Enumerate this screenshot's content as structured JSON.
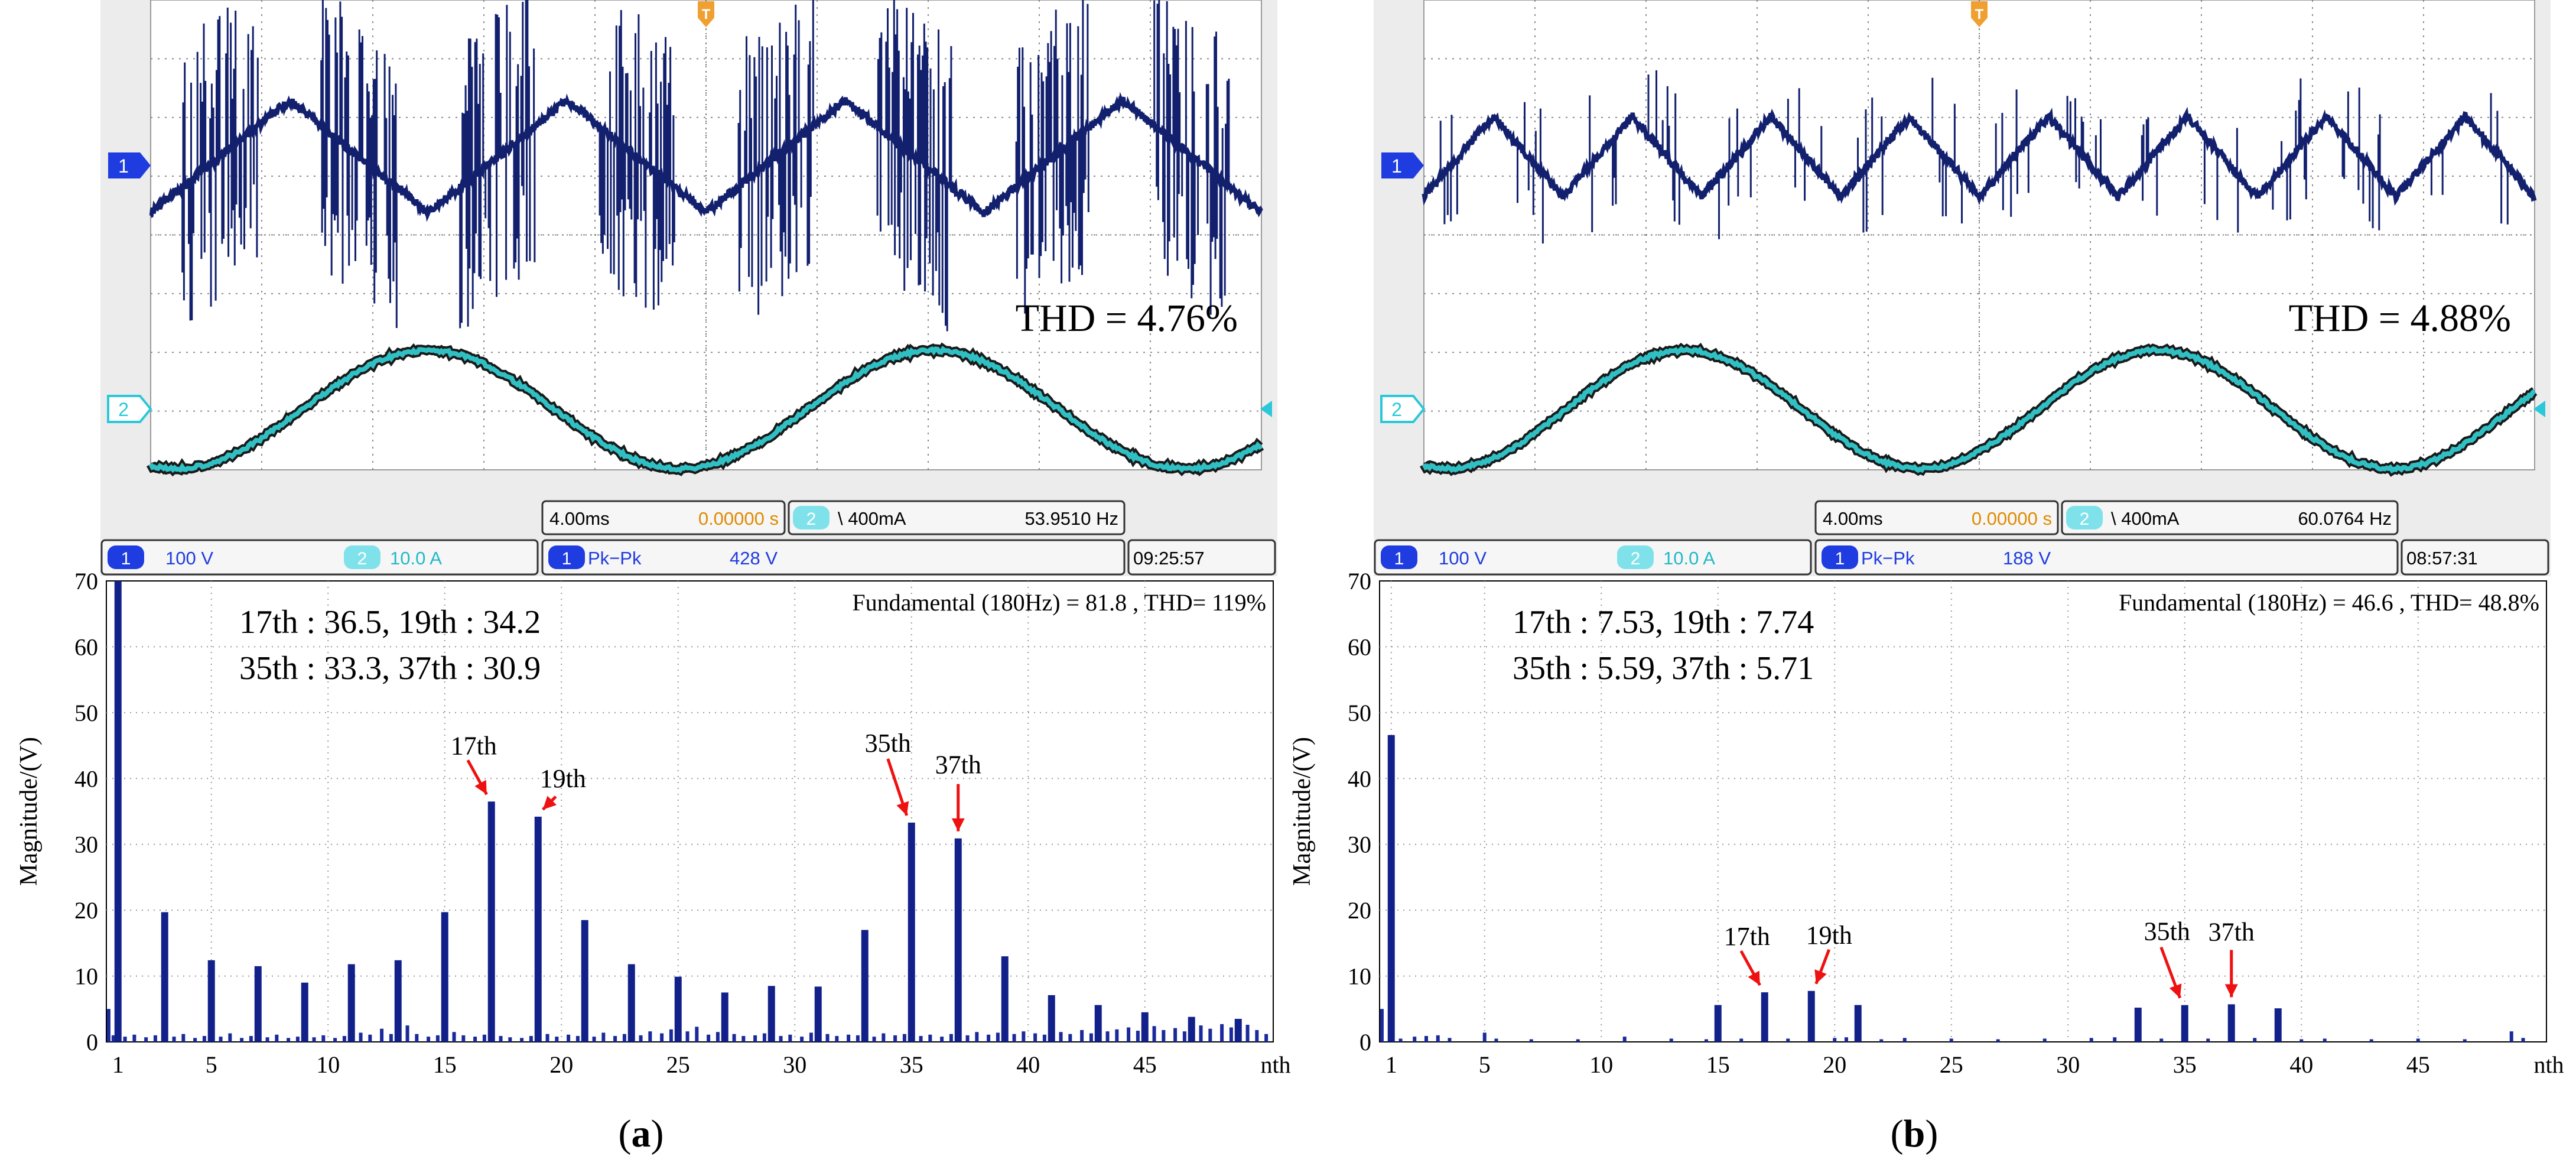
{
  "panels": [
    {
      "caption": "a",
      "thd_label": "THD = 4.76%",
      "scope": {
        "ch1_marker": "1",
        "ch2_marker": "2",
        "ch1_scale": "100 V",
        "ch2_scale": "10.0 A",
        "timebase": "4.00ms",
        "trigger_pos": "0.00000 s",
        "trigger_ch": "2",
        "trigger_level": "\\ 400mA",
        "frequency": "53.9510 Hz",
        "measure_ch": "1",
        "measure_name": "Pk−Pk",
        "measure_value": "428 V",
        "time": "09:25:57",
        "voltage_style": "dense",
        "voltage_cycles": 4,
        "current_cycles": 2.2
      },
      "chart_data": {
        "type": "bar",
        "title": "Fundamental (180Hz) = 81.8 , THD= 119%",
        "ylabel": "Magnitude/(V)",
        "xlabel": "nth",
        "ylim": [
          0,
          70
        ],
        "xlim": [
          0.5,
          50.5
        ],
        "xticks": [
          "1",
          "5",
          "10",
          "15",
          "20",
          "25",
          "30",
          "35",
          "40",
          "45",
          "nth"
        ],
        "yticks": [
          "0",
          "10",
          "20",
          "30",
          "40",
          "50",
          "60",
          "70"
        ],
        "annotation_lines": [
          "17th : 36.5, 19th : 34.2",
          "35th : 33.3, 37th : 30.9"
        ],
        "arrows": [
          {
            "label": "17th",
            "x": 17,
            "y": 36.5
          },
          {
            "label": "19th",
            "x": 19,
            "y": 34.2
          },
          {
            "label": "35th",
            "x": 35,
            "y": 33.3
          },
          {
            "label": "37th",
            "x": 37,
            "y": 30.9
          }
        ],
        "main_bars": [
          {
            "x": 1,
            "y": 70
          },
          {
            "x": 3,
            "y": 19.7
          },
          {
            "x": 5,
            "y": 12.4
          },
          {
            "x": 7,
            "y": 11.5
          },
          {
            "x": 9,
            "y": 9
          },
          {
            "x": 11,
            "y": 11.8
          },
          {
            "x": 13,
            "y": 12.4
          },
          {
            "x": 15,
            "y": 19.7
          },
          {
            "x": 17,
            "y": 36.5
          },
          {
            "x": 19,
            "y": 34.2
          },
          {
            "x": 21,
            "y": 18.5
          },
          {
            "x": 23,
            "y": 11.8
          },
          {
            "x": 25,
            "y": 9.9
          },
          {
            "x": 27,
            "y": 7.5
          },
          {
            "x": 29,
            "y": 8.5
          },
          {
            "x": 31,
            "y": 8.4
          },
          {
            "x": 33,
            "y": 17
          },
          {
            "x": 35,
            "y": 33.3
          },
          {
            "x": 37,
            "y": 30.9
          },
          {
            "x": 39,
            "y": 13
          },
          {
            "x": 41,
            "y": 7.1
          },
          {
            "x": 43,
            "y": 5.6
          },
          {
            "x": 45,
            "y": 4.5
          },
          {
            "x": 47,
            "y": 3.8
          },
          {
            "x": 49,
            "y": 3.5
          }
        ],
        "minor_bars": [
          {
            "x": 0.6,
            "y": 5
          },
          {
            "x": 0.8,
            "y": 1
          },
          {
            "x": 1.3,
            "y": 0.8
          },
          {
            "x": 1.7,
            "y": 1.1
          },
          {
            "x": 2.2,
            "y": 0.7
          },
          {
            "x": 2.6,
            "y": 1
          },
          {
            "x": 3.4,
            "y": 0.8
          },
          {
            "x": 3.8,
            "y": 1.2
          },
          {
            "x": 4.3,
            "y": 0.6
          },
          {
            "x": 4.7,
            "y": 0.9
          },
          {
            "x": 5.4,
            "y": 0.8
          },
          {
            "x": 5.8,
            "y": 1.3
          },
          {
            "x": 6.3,
            "y": 0.6
          },
          {
            "x": 6.7,
            "y": 0.9
          },
          {
            "x": 7.4,
            "y": 0.7
          },
          {
            "x": 7.8,
            "y": 1.1
          },
          {
            "x": 8.3,
            "y": 0.6
          },
          {
            "x": 8.7,
            "y": 0.8
          },
          {
            "x": 9.4,
            "y": 0.7
          },
          {
            "x": 9.8,
            "y": 1
          },
          {
            "x": 10.3,
            "y": 0.6
          },
          {
            "x": 10.7,
            "y": 0.9
          },
          {
            "x": 11.4,
            "y": 1.4
          },
          {
            "x": 11.8,
            "y": 1.1
          },
          {
            "x": 12.3,
            "y": 2
          },
          {
            "x": 12.7,
            "y": 1.2
          },
          {
            "x": 13.4,
            "y": 2.5
          },
          {
            "x": 13.8,
            "y": 1.2
          },
          {
            "x": 14.3,
            "y": 0.8
          },
          {
            "x": 14.7,
            "y": 1
          },
          {
            "x": 15.4,
            "y": 1.5
          },
          {
            "x": 15.8,
            "y": 1
          },
          {
            "x": 16.3,
            "y": 0.8
          },
          {
            "x": 16.7,
            "y": 1.1
          },
          {
            "x": 17.4,
            "y": 0.9
          },
          {
            "x": 17.8,
            "y": 0.7
          },
          {
            "x": 18.3,
            "y": 0.6
          },
          {
            "x": 18.7,
            "y": 0.9
          },
          {
            "x": 19.4,
            "y": 1.2
          },
          {
            "x": 19.8,
            "y": 0.8
          },
          {
            "x": 20.3,
            "y": 1.1
          },
          {
            "x": 20.7,
            "y": 0.9
          },
          {
            "x": 21.4,
            "y": 0.8
          },
          {
            "x": 21.8,
            "y": 1.4
          },
          {
            "x": 22.3,
            "y": 0.9
          },
          {
            "x": 22.7,
            "y": 1.2
          },
          {
            "x": 23.4,
            "y": 1
          },
          {
            "x": 23.8,
            "y": 1.6
          },
          {
            "x": 24.3,
            "y": 1.3
          },
          {
            "x": 24.7,
            "y": 1.9
          },
          {
            "x": 25.4,
            "y": 1.6
          },
          {
            "x": 25.8,
            "y": 2.3
          },
          {
            "x": 26.3,
            "y": 1.1
          },
          {
            "x": 26.7,
            "y": 1.5
          },
          {
            "x": 27.4,
            "y": 1.2
          },
          {
            "x": 27.8,
            "y": 0.9
          },
          {
            "x": 28.3,
            "y": 1
          },
          {
            "x": 28.7,
            "y": 1.3
          },
          {
            "x": 29.4,
            "y": 0.9
          },
          {
            "x": 29.8,
            "y": 1.1
          },
          {
            "x": 30.3,
            "y": 0.8
          },
          {
            "x": 30.7,
            "y": 1.4
          },
          {
            "x": 31.4,
            "y": 1.2
          },
          {
            "x": 31.8,
            "y": 0.9
          },
          {
            "x": 32.3,
            "y": 1.1
          },
          {
            "x": 32.7,
            "y": 1
          },
          {
            "x": 33.4,
            "y": 0.8
          },
          {
            "x": 33.8,
            "y": 1.3
          },
          {
            "x": 34.3,
            "y": 1
          },
          {
            "x": 34.7,
            "y": 1.2
          },
          {
            "x": 35.4,
            "y": 0.9
          },
          {
            "x": 35.8,
            "y": 1.1
          },
          {
            "x": 36.3,
            "y": 0.8
          },
          {
            "x": 36.7,
            "y": 1.2
          },
          {
            "x": 37.4,
            "y": 1
          },
          {
            "x": 37.8,
            "y": 1.5
          },
          {
            "x": 38.3,
            "y": 1.1
          },
          {
            "x": 38.7,
            "y": 1.4
          },
          {
            "x": 39.4,
            "y": 1.2
          },
          {
            "x": 39.8,
            "y": 1.6
          },
          {
            "x": 40.3,
            "y": 1.3
          },
          {
            "x": 40.7,
            "y": 1.1
          },
          {
            "x": 41.4,
            "y": 1.5
          },
          {
            "x": 41.8,
            "y": 1.2
          },
          {
            "x": 42.3,
            "y": 1.8
          },
          {
            "x": 42.7,
            "y": 1.3
          },
          {
            "x": 43.4,
            "y": 1.6
          },
          {
            "x": 43.8,
            "y": 1.9
          },
          {
            "x": 44.3,
            "y": 2.2
          },
          {
            "x": 44.7,
            "y": 1.7
          },
          {
            "x": 45.4,
            "y": 2.4
          },
          {
            "x": 45.8,
            "y": 1.8
          },
          {
            "x": 46.3,
            "y": 2.1
          },
          {
            "x": 46.7,
            "y": 1.6
          },
          {
            "x": 47.4,
            "y": 2.5
          },
          {
            "x": 47.8,
            "y": 2
          },
          {
            "x": 48.3,
            "y": 2.7
          },
          {
            "x": 48.7,
            "y": 2.2
          },
          {
            "x": 49.4,
            "y": 2.6
          },
          {
            "x": 49.8,
            "y": 1.8
          },
          {
            "x": 50.2,
            "y": 1.2
          }
        ]
      }
    },
    {
      "caption": "b",
      "thd_label": "THD = 4.88%",
      "scope": {
        "ch1_marker": "1",
        "ch2_marker": "2",
        "ch1_scale": "100 V",
        "ch2_scale": "10.0 A",
        "timebase": "4.00ms",
        "trigger_pos": "0.00000 s",
        "trigger_ch": "2",
        "trigger_level": "\\ 400mA",
        "frequency": "60.0764 Hz",
        "measure_ch": "1",
        "measure_name": "Pk−Pk",
        "measure_value": "188 V",
        "time": "08:57:31",
        "voltage_style": "sparse",
        "voltage_cycles": 8,
        "current_cycles": 2.35
      },
      "chart_data": {
        "type": "bar",
        "title": "Fundamental (180Hz) = 46.6 , THD= 48.8%",
        "ylabel": "Magnitude/(V)",
        "xlabel": "nth",
        "ylim": [
          0,
          70
        ],
        "xlim": [
          0.5,
          50.5
        ],
        "xticks": [
          "1",
          "5",
          "10",
          "15",
          "20",
          "25",
          "30",
          "35",
          "40",
          "45",
          "nth"
        ],
        "yticks": [
          "0",
          "10",
          "20",
          "30",
          "40",
          "50",
          "60",
          "70"
        ],
        "annotation_lines": [
          "17th : 7.53, 19th : 7.74",
          "35th : 5.59, 37th : 5.71"
        ],
        "arrows": [
          {
            "label": "17th",
            "x": 17,
            "y": 7.53
          },
          {
            "label": "19th",
            "x": 19,
            "y": 7.74
          },
          {
            "label": "35th",
            "x": 35,
            "y": 5.59
          },
          {
            "label": "37th",
            "x": 37,
            "y": 5.71
          }
        ],
        "main_bars": [
          {
            "x": 1,
            "y": 46.6
          },
          {
            "x": 15,
            "y": 5.6
          },
          {
            "x": 17,
            "y": 7.53
          },
          {
            "x": 19,
            "y": 7.74
          },
          {
            "x": 21,
            "y": 5.6
          },
          {
            "x": 33,
            "y": 5.2
          },
          {
            "x": 35,
            "y": 5.59
          },
          {
            "x": 37,
            "y": 5.71
          },
          {
            "x": 39,
            "y": 5.1
          }
        ],
        "minor_bars": [
          {
            "x": 0.6,
            "y": 5
          },
          {
            "x": 1.4,
            "y": 0.5
          },
          {
            "x": 2,
            "y": 0.8
          },
          {
            "x": 2.5,
            "y": 0.9
          },
          {
            "x": 3,
            "y": 1
          },
          {
            "x": 3.5,
            "y": 0.6
          },
          {
            "x": 5,
            "y": 1.4
          },
          {
            "x": 5.5,
            "y": 0.5
          },
          {
            "x": 7,
            "y": 0.4
          },
          {
            "x": 9,
            "y": 0.4
          },
          {
            "x": 11,
            "y": 0.8
          },
          {
            "x": 13,
            "y": 0.5
          },
          {
            "x": 14.5,
            "y": 0.4
          },
          {
            "x": 16,
            "y": 0.5
          },
          {
            "x": 18,
            "y": 0.5
          },
          {
            "x": 20,
            "y": 0.6
          },
          {
            "x": 20.5,
            "y": 0.7
          },
          {
            "x": 22,
            "y": 0.4
          },
          {
            "x": 23,
            "y": 0.6
          },
          {
            "x": 25,
            "y": 0.5
          },
          {
            "x": 27,
            "y": 0.4
          },
          {
            "x": 29,
            "y": 0.5
          },
          {
            "x": 31,
            "y": 0.6
          },
          {
            "x": 32,
            "y": 0.7
          },
          {
            "x": 34,
            "y": 0.5
          },
          {
            "x": 36,
            "y": 0.5
          },
          {
            "x": 38,
            "y": 0.6
          },
          {
            "x": 40,
            "y": 0.4
          },
          {
            "x": 41,
            "y": 0.5
          },
          {
            "x": 43,
            "y": 0.4
          },
          {
            "x": 45,
            "y": 0.5
          },
          {
            "x": 47,
            "y": 0.4
          },
          {
            "x": 49,
            "y": 1.6
          },
          {
            "x": 49.5,
            "y": 0.6
          }
        ]
      }
    }
  ]
}
